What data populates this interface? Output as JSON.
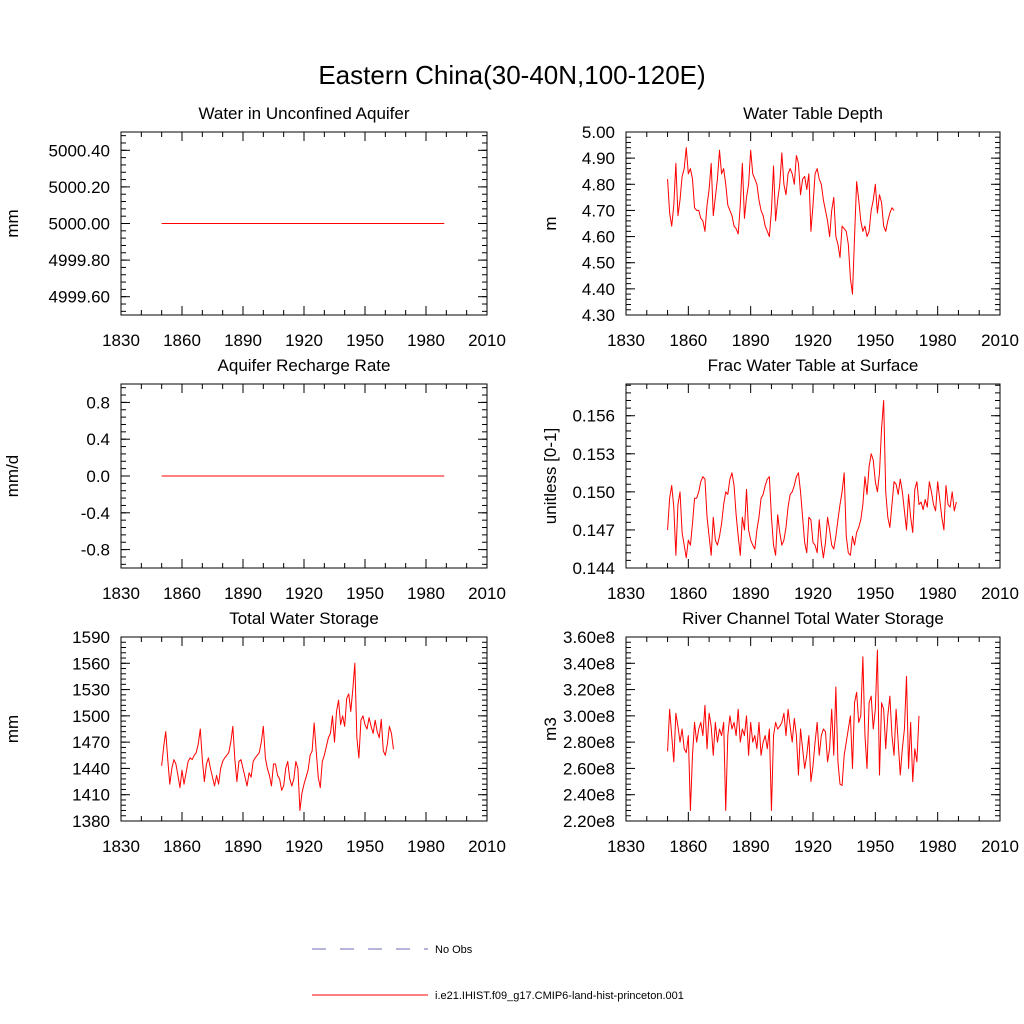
{
  "figure": {
    "title": "Eastern China(30-40N,100-120E)",
    "legend": {
      "position": "bottom-center",
      "entries": [
        {
          "label": "No Obs",
          "color": "#6b6bb5",
          "style": "dashed"
        },
        {
          "label": "i.e21.IHIST.f09_g17.CMIP6-land-hist-princeton.001",
          "color": "#ff0000",
          "style": "solid"
        }
      ]
    }
  },
  "chart_data": [
    {
      "type": "line",
      "title": "Water in Unconfined Aquifer",
      "ylabel": "mm",
      "xlim": [
        1830,
        2010
      ],
      "ylim": [
        4999.5,
        5000.5
      ],
      "xticks": [
        "1830",
        "1860",
        "1890",
        "1920",
        "1950",
        "1980",
        "2010"
      ],
      "yticks": [
        {
          "value": 4999.6,
          "label": "4999.60"
        },
        {
          "value": 4999.8,
          "label": "4999.80"
        },
        {
          "value": 5000.0,
          "label": "5000.00"
        },
        {
          "value": 5000.2,
          "label": "5000.20"
        },
        {
          "value": 5000.4,
          "label": "5000.40"
        }
      ],
      "series": [
        {
          "color": "#ff0000",
          "x_start": 1850,
          "x_end": 1989,
          "constant": 5000.0
        }
      ]
    },
    {
      "type": "line",
      "title": "Water Table Depth",
      "ylabel": "m",
      "xlim": [
        1830,
        2010
      ],
      "ylim": [
        4.3,
        5.0
      ],
      "xticks": [
        "1830",
        "1860",
        "1890",
        "1920",
        "1950",
        "1980",
        "2010"
      ],
      "yticks": [
        {
          "value": 4.3,
          "label": "4.30"
        },
        {
          "value": 4.4,
          "label": "4.40"
        },
        {
          "value": 4.5,
          "label": "4.50"
        },
        {
          "value": 4.6,
          "label": "4.60"
        },
        {
          "value": 4.7,
          "label": "4.70"
        },
        {
          "value": 4.8,
          "label": "4.80"
        },
        {
          "value": 4.9,
          "label": "4.90"
        },
        {
          "value": 5.0,
          "label": "5.00"
        }
      ],
      "series": [
        {
          "color": "#ff0000",
          "x_start": 1850,
          "values": [
            4.82,
            4.69,
            4.64,
            4.72,
            4.88,
            4.68,
            4.74,
            4.83,
            4.86,
            4.94,
            4.84,
            4.86,
            4.82,
            4.71,
            4.7,
            4.7,
            4.67,
            4.66,
            4.62,
            4.72,
            4.78,
            4.88,
            4.68,
            4.75,
            4.82,
            4.93,
            4.84,
            4.86,
            4.8,
            4.72,
            4.7,
            4.68,
            4.64,
            4.63,
            4.61,
            4.72,
            4.88,
            4.67,
            4.75,
            4.8,
            4.93,
            4.84,
            4.82,
            4.8,
            4.74,
            4.7,
            4.68,
            4.64,
            4.62,
            4.6,
            4.7,
            4.87,
            4.66,
            4.74,
            4.8,
            4.92,
            4.8,
            4.76,
            4.84,
            4.86,
            4.84,
            4.8,
            4.91,
            4.88,
            4.76,
            4.82,
            4.83,
            4.78,
            4.84,
            4.62,
            4.72,
            4.84,
            4.86,
            4.82,
            4.8,
            4.74,
            4.7,
            4.66,
            4.6,
            4.7,
            4.75,
            4.6,
            4.57,
            4.52,
            4.64,
            4.63,
            4.62,
            4.57,
            4.44,
            4.38,
            4.6,
            4.81,
            4.74,
            4.66,
            4.62,
            4.64,
            4.6,
            4.62,
            4.7,
            4.74,
            4.8,
            4.69,
            4.76,
            4.73,
            4.64,
            4.62,
            4.66,
            4.69,
            4.71,
            4.7
          ]
        }
      ]
    },
    {
      "type": "line",
      "title": "Aquifer Recharge Rate",
      "ylabel": "mm/d",
      "xlim": [
        1830,
        2010
      ],
      "ylim": [
        -1.0,
        1.0
      ],
      "xticks": [
        "1830",
        "1860",
        "1890",
        "1920",
        "1950",
        "1980",
        "2010"
      ],
      "yticks": [
        {
          "value": -0.8,
          "label": "-0.8"
        },
        {
          "value": -0.4,
          "label": "-0.4"
        },
        {
          "value": 0.0,
          "label": "0.0"
        },
        {
          "value": 0.4,
          "label": "0.4"
        },
        {
          "value": 0.8,
          "label": "0.8"
        }
      ],
      "series": [
        {
          "color": "#ff0000",
          "x_start": 1850,
          "x_end": 1989,
          "constant": 0.0
        }
      ]
    },
    {
      "type": "line",
      "title": "Frac Water Table at Surface",
      "ylabel": "unitless [0-1]",
      "xlim": [
        1830,
        2010
      ],
      "ylim": [
        0.144,
        0.1585
      ],
      "xticks": [
        "1830",
        "1860",
        "1890",
        "1920",
        "1950",
        "1980",
        "2010"
      ],
      "yticks": [
        {
          "value": 0.144,
          "label": "0.144"
        },
        {
          "value": 0.147,
          "label": "0.147"
        },
        {
          "value": 0.15,
          "label": "0.150"
        },
        {
          "value": 0.153,
          "label": "0.153"
        },
        {
          "value": 0.156,
          "label": "0.156"
        }
      ],
      "series": [
        {
          "color": "#ff0000",
          "x_start": 1850,
          "values": [
            0.147,
            0.1495,
            0.1505,
            0.1488,
            0.145,
            0.149,
            0.15,
            0.1468,
            0.1458,
            0.1448,
            0.1462,
            0.1458,
            0.1475,
            0.1495,
            0.1495,
            0.15,
            0.1508,
            0.1512,
            0.151,
            0.148,
            0.1465,
            0.145,
            0.148,
            0.1462,
            0.1458,
            0.1465,
            0.1475,
            0.149,
            0.15,
            0.1498,
            0.151,
            0.1515,
            0.1505,
            0.1482,
            0.1465,
            0.145,
            0.148,
            0.147,
            0.1502,
            0.147,
            0.1462,
            0.1458,
            0.1455,
            0.147,
            0.148,
            0.1495,
            0.1498,
            0.1505,
            0.151,
            0.1512,
            0.148,
            0.1458,
            0.145,
            0.1482,
            0.1468,
            0.1458,
            0.1462,
            0.1472,
            0.1488,
            0.1498,
            0.15,
            0.1505,
            0.1512,
            0.1515,
            0.15,
            0.148,
            0.146,
            0.1452,
            0.148,
            0.1478,
            0.146,
            0.1458,
            0.1452,
            0.1478,
            0.146,
            0.1448,
            0.146,
            0.148,
            0.147,
            0.1458,
            0.1455,
            0.1465,
            0.1478,
            0.149,
            0.15,
            0.1515,
            0.1465,
            0.1452,
            0.145,
            0.1465,
            0.1458,
            0.1468,
            0.1472,
            0.1478,
            0.149,
            0.1512,
            0.1498,
            0.152,
            0.153,
            0.1525,
            0.1508,
            0.15,
            0.1515,
            0.155,
            0.1572,
            0.15,
            0.148,
            0.1472,
            0.149,
            0.1508,
            0.1506,
            0.1498,
            0.151,
            0.15,
            0.1485,
            0.147,
            0.1498,
            0.148,
            0.1468,
            0.1502,
            0.1508,
            0.149,
            0.1492,
            0.1486,
            0.1494,
            0.1488,
            0.1508,
            0.15,
            0.149,
            0.1485,
            0.1508,
            0.1494,
            0.148,
            0.147,
            0.1505,
            0.149,
            0.1488,
            0.15,
            0.1485,
            0.1492
          ]
        }
      ]
    },
    {
      "type": "line",
      "title": "Total Water Storage",
      "ylabel": "mm",
      "xlim": [
        1830,
        2010
      ],
      "ylim": [
        1380,
        1590
      ],
      "xticks": [
        "1830",
        "1860",
        "1890",
        "1920",
        "1950",
        "1980",
        "2010"
      ],
      "yticks": [
        {
          "value": 1380,
          "label": "1380"
        },
        {
          "value": 1410,
          "label": "1410"
        },
        {
          "value": 1440,
          "label": "1440"
        },
        {
          "value": 1470,
          "label": "1470"
        },
        {
          "value": 1500,
          "label": "1500"
        },
        {
          "value": 1530,
          "label": "1530"
        },
        {
          "value": 1560,
          "label": "1560"
        },
        {
          "value": 1590,
          "label": "1590"
        }
      ],
      "series": [
        {
          "color": "#ff0000",
          "x_start": 1850,
          "values": [
            1443,
            1465,
            1482,
            1450,
            1422,
            1440,
            1450,
            1445,
            1432,
            1418,
            1438,
            1422,
            1435,
            1448,
            1452,
            1450,
            1455,
            1458,
            1468,
            1485,
            1450,
            1425,
            1445,
            1452,
            1440,
            1430,
            1420,
            1432,
            1422,
            1440,
            1448,
            1452,
            1455,
            1458,
            1470,
            1488,
            1450,
            1425,
            1448,
            1450,
            1440,
            1430,
            1420,
            1435,
            1430,
            1448,
            1452,
            1455,
            1458,
            1470,
            1488,
            1452,
            1440,
            1432,
            1420,
            1445,
            1445,
            1432,
            1428,
            1415,
            1420,
            1440,
            1448,
            1428,
            1420,
            1428,
            1448,
            1440,
            1392,
            1412,
            1422,
            1430,
            1438,
            1455,
            1460,
            1492,
            1460,
            1430,
            1418,
            1448,
            1455,
            1465,
            1475,
            1480,
            1500,
            1470,
            1505,
            1518,
            1490,
            1500,
            1488,
            1520,
            1525,
            1505,
            1530,
            1560,
            1475,
            1452,
            1495,
            1500,
            1490,
            1485,
            1498,
            1488,
            1480,
            1495,
            1482,
            1475,
            1496,
            1460,
            1455,
            1468,
            1488,
            1480,
            1462
          ]
        }
      ]
    },
    {
      "type": "line",
      "title": "River Channel Total Water Storage",
      "ylabel": "m3",
      "xlim": [
        1830,
        2010
      ],
      "ylim": [
        220000000.0,
        360000000.0
      ],
      "xticks": [
        "1830",
        "1860",
        "1890",
        "1920",
        "1950",
        "1980",
        "2010"
      ],
      "yticks": [
        {
          "value": 220000000,
          "label": "2.20e8"
        },
        {
          "value": 240000000,
          "label": "2.40e8"
        },
        {
          "value": 260000000,
          "label": "2.60e8"
        },
        {
          "value": 280000000,
          "label": "2.80e8"
        },
        {
          "value": 300000000,
          "label": "3.00e8"
        },
        {
          "value": 320000000,
          "label": "3.20e8"
        },
        {
          "value": 340000000,
          "label": "3.40e8"
        },
        {
          "value": 360000000,
          "label": "3.60e8"
        }
      ],
      "series": [
        {
          "color": "#ff0000",
          "x_start": 1850,
          "values": [
            273000000.0,
            305000000.0,
            285000000.0,
            265000000.0,
            302000000.0,
            292000000.0,
            280000000.0,
            290000000.0,
            275000000.0,
            272000000.0,
            285000000.0,
            228000000.0,
            270000000.0,
            295000000.0,
            280000000.0,
            290000000.0,
            295000000.0,
            285000000.0,
            308000000.0,
            275000000.0,
            302000000.0,
            292000000.0,
            270000000.0,
            295000000.0,
            280000000.0,
            290000000.0,
            285000000.0,
            295000000.0,
            228000000.0,
            285000000.0,
            300000000.0,
            290000000.0,
            295000000.0,
            285000000.0,
            305000000.0,
            280000000.0,
            290000000.0,
            285000000.0,
            300000000.0,
            270000000.0,
            295000000.0,
            280000000.0,
            285000000.0,
            275000000.0,
            295000000.0,
            270000000.0,
            280000000.0,
            285000000.0,
            275000000.0,
            290000000.0,
            228000000.0,
            285000000.0,
            295000000.0,
            290000000.0,
            292000000.0,
            295000000.0,
            302000000.0,
            285000000.0,
            305000000.0,
            292000000.0,
            280000000.0,
            298000000.0,
            285000000.0,
            255000000.0,
            290000000.0,
            275000000.0,
            260000000.0,
            270000000.0,
            285000000.0,
            250000000.0,
            262000000.0,
            280000000.0,
            295000000.0,
            270000000.0,
            285000000.0,
            290000000.0,
            288000000.0,
            265000000.0,
            275000000.0,
            305000000.0,
            270000000.0,
            322000000.0,
            265000000.0,
            248000000.0,
            247000000.0,
            270000000.0,
            280000000.0,
            290000000.0,
            300000000.0,
            260000000.0,
            310000000.0,
            318000000.0,
            295000000.0,
            300000000.0,
            345000000.0,
            285000000.0,
            260000000.0,
            310000000.0,
            315000000.0,
            290000000.0,
            305000000.0,
            350000000.0,
            255000000.0,
            310000000.0,
            305000000.0,
            275000000.0,
            300000000.0,
            315000000.0,
            285000000.0,
            270000000.0,
            305000000.0,
            280000000.0,
            255000000.0,
            275000000.0,
            290000000.0,
            330000000.0,
            260000000.0,
            295000000.0,
            250000000.0,
            275000000.0,
            265000000.0,
            300000000.0
          ]
        }
      ]
    }
  ]
}
